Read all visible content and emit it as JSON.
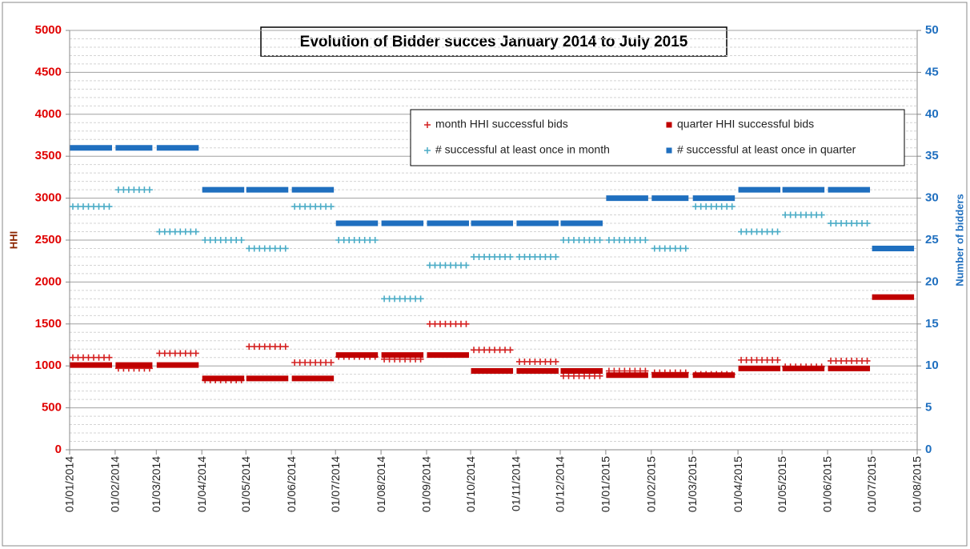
{
  "chart_data": {
    "type": "step-scatter",
    "title": "Evolution of Bidder succes January 2014 to July 2015",
    "y_label": "HHI",
    "y2_label": "Number of bidders",
    "x": [
      "2014-01-01",
      "2014-02-01",
      "2014-03-01",
      "2014-04-01",
      "2014-05-01",
      "2014-06-01",
      "2014-07-01",
      "2014-08-01",
      "2014-09-01",
      "2014-10-01",
      "2014-11-01",
      "2014-12-01",
      "2015-01-01",
      "2015-02-01",
      "2015-03-01",
      "2015-04-01",
      "2015-05-01",
      "2015-06-01",
      "2015-07-01"
    ],
    "xlim": [
      "2014-01-01",
      "2015-08-01"
    ],
    "xticks": [
      {
        "value": "2014-01-01",
        "label": "01/01/2014"
      },
      {
        "value": "2014-02-01",
        "label": "01/02/2014"
      },
      {
        "value": "2014-03-01",
        "label": "01/03/2014"
      },
      {
        "value": "2014-04-01",
        "label": "01/04/2014"
      },
      {
        "value": "2014-05-01",
        "label": "01/05/2014"
      },
      {
        "value": "2014-06-01",
        "label": "01/06/2014"
      },
      {
        "value": "2014-07-01",
        "label": "01/07/2014"
      },
      {
        "value": "2014-08-01",
        "label": "01/08/2014"
      },
      {
        "value": "2014-09-01",
        "label": "01/09/2014"
      },
      {
        "value": "2014-10-01",
        "label": "01/10/2014"
      },
      {
        "value": "2014-11-01",
        "label": "01/11/2014"
      },
      {
        "value": "2014-12-01",
        "label": "01/12/2014"
      },
      {
        "value": "2015-01-01",
        "label": "01/01/2015"
      },
      {
        "value": "2015-02-01",
        "label": "01/02/2015"
      },
      {
        "value": "2015-03-01",
        "label": "01/03/2015"
      },
      {
        "value": "2015-04-01",
        "label": "01/04/2015"
      },
      {
        "value": "2015-05-01",
        "label": "01/05/2015"
      },
      {
        "value": "2015-06-01",
        "label": "01/06/2015"
      },
      {
        "value": "2015-07-01",
        "label": "01/07/2015"
      },
      {
        "value": "2015-08-01",
        "label": "01/08/2015"
      }
    ],
    "ylim": [
      0,
      5000
    ],
    "yticks": [
      0,
      500,
      1000,
      1500,
      2000,
      2500,
      3000,
      3500,
      4000,
      4500,
      5000
    ],
    "y2lim": [
      0,
      50
    ],
    "y2ticks": [
      0,
      5,
      10,
      15,
      20,
      25,
      30,
      35,
      40,
      45,
      50
    ],
    "grid": true,
    "series": [
      {
        "name": "month HHI successful bids",
        "color": "#d42020",
        "marker": "plus",
        "values": [
          1100,
          970,
          1150,
          830,
          1230,
          1040,
          1110,
          1080,
          1500,
          1190,
          1050,
          880,
          940,
          920,
          900,
          1070,
          990,
          1060,
          null
        ]
      },
      {
        "name": "quarter HHI successful bids",
        "color": "#c00000",
        "marker": "square",
        "values": [
          1010,
          1010,
          1010,
          850,
          850,
          850,
          1130,
          1130,
          1130,
          940,
          940,
          940,
          890,
          890,
          890,
          970,
          970,
          970,
          1820
        ]
      },
      {
        "name": "# successful at least once in month",
        "color": "#4bacc6",
        "marker": "plus",
        "axis": "y2",
        "values": [
          29,
          31,
          26,
          25,
          24,
          29,
          25,
          18,
          22,
          23,
          23,
          25,
          25,
          24,
          29,
          26,
          28,
          27,
          null
        ]
      },
      {
        "name": "# successful at least once in quarter",
        "color": "#1f6fbf",
        "marker": "square",
        "axis": "y2",
        "values": [
          36,
          36,
          36,
          31,
          31,
          31,
          27,
          27,
          27,
          27,
          27,
          27,
          30,
          30,
          30,
          31,
          31,
          31,
          24
        ]
      }
    ]
  }
}
